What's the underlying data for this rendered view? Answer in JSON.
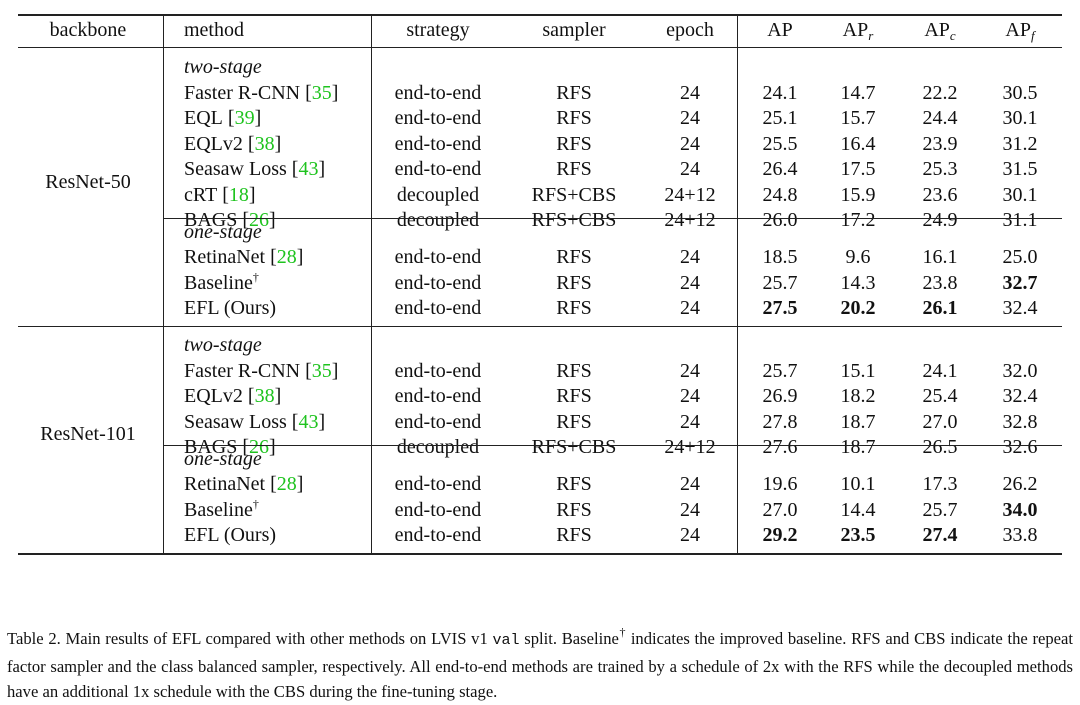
{
  "table": {
    "columns": [
      {
        "text": "backbone"
      },
      {
        "text": "method"
      },
      {
        "text": "strategy"
      },
      {
        "text": "sampler"
      },
      {
        "text": "epoch"
      },
      {
        "text": "AP"
      },
      {
        "text": "AP",
        "sub": "r"
      },
      {
        "text": "AP",
        "sub": "c"
      },
      {
        "text": "AP",
        "sub": "f"
      }
    ],
    "sections": [
      {
        "backbone": "ResNet-50",
        "groups": [
          {
            "label": "two-stage",
            "rows": [
              {
                "method": "Faster R-CNN",
                "cite": [
                  "[",
                  "35",
                  "]"
                ],
                "strategy": "end-to-end",
                "sampler": "RFS",
                "epoch": "24",
                "ap": [
                  "24.1",
                  "14.7",
                  "22.2",
                  "30.5"
                ]
              },
              {
                "method": "EQL",
                "cite": [
                  "[",
                  "39",
                  "]"
                ],
                "strategy": "end-to-end",
                "sampler": "RFS",
                "epoch": "24",
                "ap": [
                  "25.1",
                  "15.7",
                  "24.4",
                  "30.1"
                ]
              },
              {
                "method": "EQLv2",
                "cite": [
                  "[",
                  "38",
                  "]"
                ],
                "strategy": "end-to-end",
                "sampler": "RFS",
                "epoch": "24",
                "ap": [
                  "25.5",
                  "16.4",
                  "23.9",
                  "31.2"
                ]
              },
              {
                "method": "Seasaw Loss",
                "cite": [
                  "[",
                  "43",
                  "]"
                ],
                "strategy": "end-to-end",
                "sampler": "RFS",
                "epoch": "24",
                "ap": [
                  "26.4",
                  "17.5",
                  "25.3",
                  "31.5"
                ]
              },
              {
                "method": "cRT",
                "cite": [
                  "[",
                  "18",
                  "]"
                ],
                "strategy": "decoupled",
                "sampler": "RFS+CBS",
                "epoch": "24+12",
                "ap": [
                  "24.8",
                  "15.9",
                  "23.6",
                  "30.1"
                ]
              },
              {
                "method": "BAGS",
                "cite": [
                  "[",
                  "26",
                  "]"
                ],
                "strategy": "decoupled",
                "sampler": "RFS+CBS",
                "epoch": "24+12",
                "ap": [
                  "26.0",
                  "17.2",
                  "24.9",
                  "31.1"
                ]
              }
            ]
          },
          {
            "label": "one-stage",
            "rows": [
              {
                "method": "RetinaNet",
                "cite": [
                  "[",
                  "28",
                  "]"
                ],
                "strategy": "end-to-end",
                "sampler": "RFS",
                "epoch": "24",
                "ap": [
                  "18.5",
                  "9.6",
                  "16.1",
                  "25.0"
                ]
              },
              {
                "method": "Baseline",
                "sup": "†",
                "strategy": "end-to-end",
                "sampler": "RFS",
                "epoch": "24",
                "ap": [
                  "25.7",
                  "14.3",
                  "23.8",
                  "32.7"
                ],
                "bold": [
                  false,
                  false,
                  false,
                  true
                ]
              },
              {
                "method": "EFL (Ours)",
                "strategy": "end-to-end",
                "sampler": "RFS",
                "epoch": "24",
                "ap": [
                  "27.5",
                  "20.2",
                  "26.1",
                  "32.4"
                ],
                "bold": [
                  true,
                  true,
                  true,
                  false
                ]
              }
            ]
          }
        ]
      },
      {
        "backbone": "ResNet-101",
        "groups": [
          {
            "label": "two-stage",
            "rows": [
              {
                "method": "Faster R-CNN",
                "cite": [
                  "[",
                  "35",
                  "]"
                ],
                "strategy": "end-to-end",
                "sampler": "RFS",
                "epoch": "24",
                "ap": [
                  "25.7",
                  "15.1",
                  "24.1",
                  "32.0"
                ]
              },
              {
                "method": "EQLv2",
                "cite": [
                  "[",
                  "38",
                  "]"
                ],
                "strategy": "end-to-end",
                "sampler": "RFS",
                "epoch": "24",
                "ap": [
                  "26.9",
                  "18.2",
                  "25.4",
                  "32.4"
                ]
              },
              {
                "method": "Seasaw Loss",
                "cite": [
                  "[",
                  "43",
                  "]"
                ],
                "strategy": "end-to-end",
                "sampler": "RFS",
                "epoch": "24",
                "ap": [
                  "27.8",
                  "18.7",
                  "27.0",
                  "32.8"
                ]
              },
              {
                "method": "BAGS",
                "cite": [
                  "[",
                  "26",
                  "]"
                ],
                "strategy": "decoupled",
                "sampler": "RFS+CBS",
                "epoch": "24+12",
                "ap": [
                  "27.6",
                  "18.7",
                  "26.5",
                  "32.6"
                ]
              }
            ]
          },
          {
            "label": "one-stage",
            "rows": [
              {
                "method": "RetinaNet",
                "cite": [
                  "[",
                  "28",
                  "]"
                ],
                "strategy": "end-to-end",
                "sampler": "RFS",
                "epoch": "24",
                "ap": [
                  "19.6",
                  "10.1",
                  "17.3",
                  "26.2"
                ]
              },
              {
                "method": "Baseline",
                "sup": "†",
                "strategy": "end-to-end",
                "sampler": "RFS",
                "epoch": "24",
                "ap": [
                  "27.0",
                  "14.4",
                  "25.7",
                  "34.0"
                ],
                "bold": [
                  false,
                  false,
                  false,
                  true
                ]
              },
              {
                "method": "EFL (Ours)",
                "strategy": "end-to-end",
                "sampler": "RFS",
                "epoch": "24",
                "ap": [
                  "29.2",
                  "23.5",
                  "27.4",
                  "33.8"
                ],
                "bold": [
                  true,
                  true,
                  true,
                  false
                ]
              }
            ]
          }
        ]
      }
    ]
  },
  "caption": {
    "parts": [
      {
        "text": "Table 2. Main results of EFL compared with other methods on LVIS v1 "
      },
      {
        "text": "val",
        "style": "code"
      },
      {
        "text": " split. Baseline"
      },
      {
        "text": "†",
        "style": "sup"
      },
      {
        "text": " indicates the improved baseline. RFS and CBS indicate the repeat factor sampler and the class balanced sampler, respectively. All end-to-end methods are trained by a schedule of 2x with the RFS while the decoupled methods have an additional 1x schedule with the CBS during the fine-tuning stage."
      }
    ]
  }
}
